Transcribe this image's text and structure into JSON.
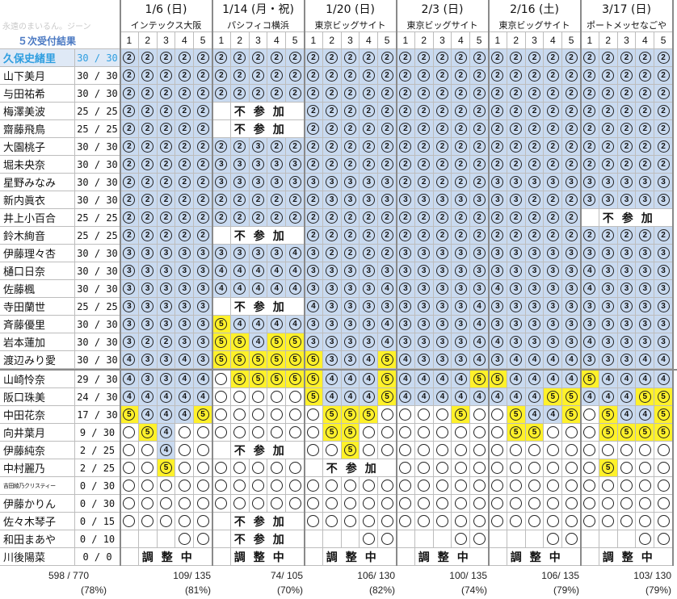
{
  "header": {
    "watermark": "永遠のまいるん。ジーン",
    "title": "５次受付結果",
    "slot_numbers": [
      "1",
      "2",
      "3",
      "4",
      "5"
    ],
    "events": [
      {
        "date": "1/6 (日)",
        "venue": "インテックス大阪",
        "total": "109/ 135",
        "pct": "(81%)"
      },
      {
        "date": "1/14 (月・祝)",
        "venue": "パシフィコ横浜",
        "total": "74/ 105",
        "pct": "(70%)"
      },
      {
        "date": "1/20 (日)",
        "venue": "東京ビッグサイト",
        "total": "106/ 130",
        "pct": "(82%)"
      },
      {
        "date": "2/3 (日)",
        "venue": "東京ビッグサイト",
        "total": "100/ 135",
        "pct": "(74%)"
      },
      {
        "date": "2/16 (土)",
        "venue": "東京ビッグサイト",
        "total": "106/ 135",
        "pct": "(79%)"
      },
      {
        "date": "3/17 (日)",
        "venue": "ポートメッセなごや",
        "total": "103/ 130",
        "pct": "(79%)"
      }
    ]
  },
  "grand_total": {
    "value": "598 / 770",
    "pct": "(78%)"
  },
  "legend_colors": {
    "counted": "#c9daf0",
    "new_in_round": "#fff12a",
    "highlight_name": "#2f9ee0"
  },
  "members": [
    {
      "name": "久保史緒里",
      "score": "30 / 30",
      "hl": true,
      "cells": [
        "2b",
        "2b",
        "2b",
        "2b",
        "2b",
        "2b",
        "2b",
        "2b",
        "2b",
        "2b",
        "2b",
        "2b",
        "2b",
        "2b",
        "2b",
        "2b",
        "2b",
        "2b",
        "2b",
        "2b",
        "2b",
        "2b",
        "2b",
        "2b",
        "2b",
        "2b",
        "2b",
        "2b",
        "2b",
        "2b"
      ]
    },
    {
      "name": "山下美月",
      "score": "30 / 30",
      "cells": [
        "2b",
        "2b",
        "2b",
        "2b",
        "2b",
        "2b",
        "2b",
        "2b",
        "2b",
        "2b",
        "2b",
        "2b",
        "2b",
        "2b",
        "2b",
        "2b",
        "2b",
        "2b",
        "2b",
        "2b",
        "2b",
        "2b",
        "2b",
        "2b",
        "2b",
        "2b",
        "2b",
        "2b",
        "2b",
        "2b"
      ]
    },
    {
      "name": "与田祐希",
      "score": "30 / 30",
      "cells": [
        "2b",
        "2b",
        "2b",
        "2b",
        "2b",
        "2b",
        "2b",
        "2b",
        "2b",
        "2b",
        "2b",
        "2b",
        "2b",
        "2b",
        "2b",
        "2b",
        "2b",
        "2b",
        "2b",
        "2b",
        "2b",
        "2b",
        "2b",
        "2b",
        "2b",
        "2b",
        "2b",
        "2b",
        "2b",
        "2b"
      ]
    },
    {
      "name": "梅澤美波",
      "score": "25 / 25",
      "cells": [
        "2b",
        "2b",
        "2b",
        "2b",
        "2b",
        "",
        null,
        null,
        null,
        null,
        "2b",
        "2b",
        "2b",
        "2b",
        "2b",
        "2b",
        "2b",
        "2b",
        "2b",
        "2b",
        "2b",
        "2b",
        "2b",
        "2b",
        "2b",
        "2b",
        "2b",
        "2b",
        "2b",
        "2b"
      ],
      "note": {
        "event": 1,
        "text": "不参加"
      }
    },
    {
      "name": "齋藤飛鳥",
      "score": "25 / 25",
      "cells": [
        "2b",
        "2b",
        "2b",
        "2b",
        "2b",
        "",
        null,
        null,
        null,
        null,
        "2b",
        "2b",
        "2b",
        "2b",
        "2b",
        "2b",
        "2b",
        "2b",
        "2b",
        "2b",
        "2b",
        "2b",
        "2b",
        "2b",
        "2b",
        "2b",
        "2b",
        "2b",
        "2b",
        "2b"
      ],
      "note": {
        "event": 1,
        "text": "不参加"
      }
    },
    {
      "name": "大園桃子",
      "score": "30 / 30",
      "cells": [
        "2b",
        "2b",
        "2b",
        "2b",
        "2b",
        "2b",
        "2b",
        "3b",
        "2b",
        "2b",
        "2b",
        "2b",
        "2b",
        "2b",
        "2b",
        "2b",
        "2b",
        "2b",
        "2b",
        "2b",
        "2b",
        "2b",
        "2b",
        "2b",
        "2b",
        "2b",
        "2b",
        "2b",
        "2b",
        "2b"
      ]
    },
    {
      "name": "堀未央奈",
      "score": "30 / 30",
      "cells": [
        "2b",
        "2b",
        "2b",
        "2b",
        "2b",
        "3b",
        "3b",
        "3b",
        "3b",
        "3b",
        "2b",
        "2b",
        "2b",
        "2b",
        "2b",
        "2b",
        "2b",
        "2b",
        "2b",
        "2b",
        "2b",
        "2b",
        "2b",
        "2b",
        "2b",
        "2b",
        "2b",
        "2b",
        "2b",
        "2b"
      ]
    },
    {
      "name": "星野みなみ",
      "score": "30 / 30",
      "cells": [
        "2b",
        "2b",
        "2b",
        "2b",
        "2b",
        "3b",
        "3b",
        "3b",
        "3b",
        "3b",
        "3b",
        "3b",
        "3b",
        "3b",
        "3b",
        "2b",
        "2b",
        "2b",
        "2b",
        "2b",
        "3b",
        "3b",
        "3b",
        "3b",
        "3b",
        "3b",
        "3b",
        "3b",
        "3b",
        "3b"
      ]
    },
    {
      "name": "新内眞衣",
      "score": "30 / 30",
      "cells": [
        "2b",
        "2b",
        "2b",
        "2b",
        "2b",
        "2b",
        "2b",
        "2b",
        "2b",
        "2b",
        "2b",
        "3b",
        "3b",
        "3b",
        "3b",
        "3b",
        "3b",
        "3b",
        "3b",
        "3b",
        "3b",
        "3b",
        "2b",
        "2b",
        "2b",
        "3b",
        "3b",
        "3b",
        "3b",
        "3b"
      ]
    },
    {
      "name": "井上小百合",
      "score": "25 / 25",
      "cells": [
        "2b",
        "2b",
        "2b",
        "2b",
        "2b",
        "2b",
        "2b",
        "2b",
        "2b",
        "2b",
        "2b",
        "2b",
        "2b",
        "2b",
        "2b",
        "2b",
        "2b",
        "2b",
        "2b",
        "2b",
        "2b",
        "2b",
        "2b",
        "2b",
        "2b",
        "",
        null,
        null,
        null,
        null
      ],
      "note": {
        "event": 5,
        "text": "不参加"
      }
    },
    {
      "name": "鈴木絢音",
      "score": "25 / 25",
      "cells": [
        "2b",
        "2b",
        "2b",
        "2b",
        "2b",
        "",
        null,
        null,
        null,
        null,
        "2b",
        "2b",
        "2b",
        "2b",
        "2b",
        "2b",
        "2b",
        "2b",
        "2b",
        "2b",
        "2b",
        "2b",
        "2b",
        "2b",
        "2b",
        "2b",
        "2b",
        "2b",
        "2b",
        "2b"
      ],
      "note": {
        "event": 1,
        "text": "不参加"
      }
    },
    {
      "name": "伊藤理々杏",
      "score": "30 / 30",
      "cells": [
        "3b",
        "3b",
        "3b",
        "3b",
        "3b",
        "3b",
        "3b",
        "3b",
        "3b",
        "4b",
        "3b",
        "2b",
        "2b",
        "2b",
        "2b",
        "3b",
        "3b",
        "3b",
        "3b",
        "3b",
        "3b",
        "3b",
        "3b",
        "3b",
        "3b",
        "3b",
        "3b",
        "3b",
        "3b",
        "3b"
      ]
    },
    {
      "name": "樋口日奈",
      "score": "30 / 30",
      "cells": [
        "3b",
        "3b",
        "3b",
        "3b",
        "3b",
        "4b",
        "4b",
        "4b",
        "4b",
        "4b",
        "3b",
        "3b",
        "3b",
        "3b",
        "3b",
        "3b",
        "3b",
        "3b",
        "3b",
        "3b",
        "3b",
        "3b",
        "3b",
        "3b",
        "3b",
        "4b",
        "3b",
        "3b",
        "3b",
        "3b"
      ]
    },
    {
      "name": "佐藤楓",
      "score": "30 / 30",
      "cells": [
        "3b",
        "3b",
        "3b",
        "3b",
        "3b",
        "4b",
        "4b",
        "4b",
        "4b",
        "4b",
        "3b",
        "3b",
        "3b",
        "3b",
        "4b",
        "3b",
        "3b",
        "3b",
        "3b",
        "3b",
        "4b",
        "3b",
        "3b",
        "3b",
        "3b",
        "4b",
        "3b",
        "3b",
        "3b",
        "3b"
      ]
    },
    {
      "name": "寺田蘭世",
      "score": "25 / 25",
      "cells": [
        "3b",
        "3b",
        "3b",
        "3b",
        "3b",
        "",
        null,
        null,
        null,
        null,
        "4b",
        "3b",
        "3b",
        "3b",
        "3b",
        "3b",
        "3b",
        "3b",
        "3b",
        "4b",
        "3b",
        "3b",
        "3b",
        "3b",
        "3b",
        "3b",
        "3b",
        "3b",
        "3b",
        "3b"
      ],
      "note": {
        "event": 1,
        "text": "不参加"
      }
    },
    {
      "name": "斉藤優里",
      "score": "30 / 30",
      "cells": [
        "3b",
        "3b",
        "3b",
        "3b",
        "3b",
        "5y",
        "4b",
        "4b",
        "4b",
        "4b",
        "3b",
        "3b",
        "3b",
        "3b",
        "4b",
        "3b",
        "3b",
        "3b",
        "3b",
        "4b",
        "3b",
        "3b",
        "3b",
        "3b",
        "3b",
        "3b",
        "3b",
        "3b",
        "3b",
        "3b"
      ]
    },
    {
      "name": "岩本蓮加",
      "score": "30 / 30",
      "cells": [
        "3b",
        "2b",
        "2b",
        "3b",
        "3b",
        "5y",
        "5y",
        "4b",
        "5y",
        "5y",
        "3b",
        "3b",
        "3b",
        "3b",
        "4b",
        "3b",
        "3b",
        "3b",
        "3b",
        "4b",
        "4b",
        "3b",
        "3b",
        "3b",
        "3b",
        "4b",
        "3b",
        "3b",
        "3b",
        "3b"
      ]
    },
    {
      "name": "渡辺みり愛",
      "score": "30 / 30",
      "cells": [
        "4b",
        "3b",
        "3b",
        "4b",
        "3b",
        "5y",
        "5y",
        "5y",
        "5y",
        "5y",
        "5y",
        "3b",
        "3b",
        "4b",
        "5y",
        "4b",
        "3b",
        "3b",
        "3b",
        "4b",
        "3b",
        "4b",
        "4b",
        "4b",
        "4b",
        "3b",
        "3b",
        "3b",
        "4b",
        "4b"
      ]
    },
    {
      "name": "山崎怜奈",
      "score": "29 / 30",
      "cells": [
        "4b",
        "3b",
        "3b",
        "4b",
        "4b",
        "o",
        "5y",
        "5y",
        "5y",
        "5y",
        "5y",
        "4b",
        "4b",
        "4b",
        "5y",
        "4b",
        "4b",
        "4b",
        "4b",
        "5y",
        "5y",
        "4b",
        "4b",
        "4b",
        "4b",
        "5y",
        "4b",
        "4b",
        "4b",
        "4b"
      ]
    },
    {
      "name": "阪口珠美",
      "score": "24 / 30",
      "cells": [
        "4b",
        "4b",
        "4b",
        "4b",
        "4b",
        "o",
        "o",
        "o",
        "o",
        "o",
        "5y",
        "4b",
        "4b",
        "4b",
        "5y",
        "4b",
        "4b",
        "4b",
        "4b",
        "4b",
        "4b",
        "4b",
        "4b",
        "5y",
        "5y",
        "4b",
        "4b",
        "4b",
        "5y",
        "5y"
      ]
    },
    {
      "name": "中田花奈",
      "score": "17 / 30",
      "cells": [
        "5y",
        "4b",
        "4b",
        "4b",
        "5y",
        "o",
        "o",
        "o",
        "o",
        "o",
        "o",
        "5y",
        "5y",
        "5y",
        "o",
        "o",
        "o",
        "o",
        "5y",
        "o",
        "o",
        "5y",
        "4b",
        "4b",
        "5y",
        "o",
        "5y",
        "4b",
        "4b",
        "5y"
      ]
    },
    {
      "name": "向井葉月",
      "score": "9 / 30",
      "cells": [
        "o",
        "5y",
        "4b",
        "o",
        "o",
        "o",
        "o",
        "o",
        "o",
        "o",
        "o",
        "5y",
        "5y",
        "o",
        "o",
        "o",
        "o",
        "o",
        "o",
        "o",
        "o",
        "5y",
        "5y",
        "o",
        "o",
        "o",
        "5y",
        "5y",
        "5y",
        "5y"
      ]
    },
    {
      "name": "伊藤純奈",
      "score": "2 / 25",
      "cells": [
        "o",
        "o",
        "4b",
        "o",
        "o",
        "",
        null,
        null,
        null,
        null,
        "o",
        "o",
        "5y",
        "o",
        "o",
        "o",
        "o",
        "o",
        "o",
        "o",
        "o",
        "o",
        "o",
        "o",
        "o",
        "o",
        "o",
        "o",
        "o",
        "o"
      ],
      "note": {
        "event": 1,
        "text": "不参加"
      }
    },
    {
      "name": "中村麗乃",
      "score": "2 / 25",
      "cells": [
        "o",
        "o",
        "5y",
        "o",
        "o",
        "o",
        "o",
        "o",
        "o",
        "o",
        "",
        null,
        null,
        null,
        null,
        "o",
        "o",
        "o",
        "o",
        "o",
        "o",
        "o",
        "o",
        "o",
        "o",
        "o",
        "5y",
        "o",
        "o",
        "o"
      ],
      "note": {
        "event": 2,
        "text": "不参加"
      }
    },
    {
      "name": "吉田綾乃クリスティー",
      "score": "0 / 30",
      "tiny": true,
      "cells": [
        "o",
        "o",
        "o",
        "o",
        "o",
        "o",
        "o",
        "o",
        "o",
        "o",
        "o",
        "o",
        "o",
        "o",
        "o",
        "o",
        "o",
        "o",
        "o",
        "o",
        "o",
        "o",
        "o",
        "o",
        "o",
        "o",
        "o",
        "o",
        "o",
        "o"
      ]
    },
    {
      "name": "伊藤かりん",
      "score": "0 / 30",
      "cells": [
        "o",
        "o",
        "o",
        "o",
        "o",
        "o",
        "o",
        "o",
        "o",
        "o",
        "o",
        "o",
        "o",
        "o",
        "o",
        "o",
        "o",
        "o",
        "o",
        "o",
        "o",
        "o",
        "o",
        "o",
        "o",
        "o",
        "o",
        "o",
        "o",
        "o"
      ]
    },
    {
      "name": "佐々木琴子",
      "score": "0 / 15",
      "cells": [
        "o",
        "o",
        "o",
        "o",
        "o",
        "",
        null,
        null,
        null,
        null,
        "o",
        "o",
        "o",
        "o",
        "o",
        "o",
        "o",
        "o",
        "o",
        "o",
        "o",
        "o",
        "o",
        "o",
        "o",
        "o",
        "o",
        "o",
        "o",
        "o"
      ],
      "note": {
        "event": 1,
        "text": "不参加"
      }
    },
    {
      "name": "和田まあや",
      "score": "0 / 10",
      "cells": [
        "",
        "",
        "",
        "o",
        "o",
        "",
        null,
        null,
        null,
        null,
        "",
        "",
        "",
        "o",
        "o",
        "",
        "",
        "",
        "o",
        "o",
        "",
        "",
        "",
        "o",
        "o",
        "",
        "",
        "",
        "o",
        "o"
      ],
      "note": {
        "event": 1,
        "text": "不参加"
      }
    },
    {
      "name": "川後陽菜",
      "score": "0 / 0",
      "cells": [
        "",
        "",
        null,
        null,
        null,
        "",
        null,
        null,
        null,
        null,
        "",
        null,
        null,
        null,
        null,
        "",
        null,
        null,
        null,
        null,
        "",
        null,
        null,
        null,
        null,
        "",
        null,
        null,
        null,
        null
      ],
      "notes": [
        {
          "event": 0,
          "text": "調整中"
        },
        {
          "event": 1,
          "text": "調整中"
        },
        {
          "event": 2,
          "text": "調整中"
        },
        {
          "event": 3,
          "text": "調整中"
        },
        {
          "event": 4,
          "text": "調整中"
        },
        {
          "event": 5,
          "text": "調整中"
        }
      ]
    }
  ]
}
